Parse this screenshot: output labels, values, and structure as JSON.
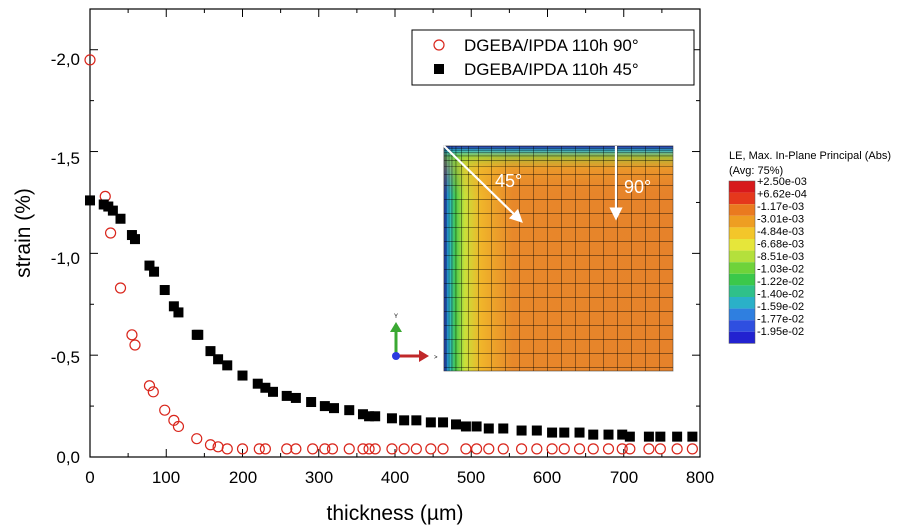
{
  "chart_data": {
    "type": "scatter",
    "xlabel": "thickness (µm)",
    "ylabel": "strain (%)",
    "xlim": [
      0,
      800
    ],
    "ylim": [
      0,
      -2.2
    ],
    "y_axis_inverted": true,
    "x_ticks": [
      "0",
      "100",
      "200",
      "300",
      "400",
      "500",
      "600",
      "700",
      "800"
    ],
    "y_ticks": [
      "0,0",
      "-0,5",
      "-1,0",
      "-1,5",
      "-2,0"
    ],
    "grid": false,
    "legend_position": "top-right",
    "series": [
      {
        "name": "DGEBA/IPDA 110h 90°",
        "marker": "open-circle",
        "color": "#d9261c",
        "points": [
          [
            0,
            -1.95
          ],
          [
            20,
            -1.28
          ],
          [
            27,
            -1.1
          ],
          [
            40,
            -0.83
          ],
          [
            55,
            -0.6
          ],
          [
            59,
            -0.55
          ],
          [
            78,
            -0.35
          ],
          [
            83,
            -0.32
          ],
          [
            98,
            -0.23
          ],
          [
            110,
            -0.18
          ],
          [
            116,
            -0.15
          ],
          [
            140,
            -0.09
          ],
          [
            158,
            -0.06
          ],
          [
            168,
            -0.05
          ],
          [
            180,
            -0.04
          ],
          [
            200,
            -0.04
          ],
          [
            222,
            -0.04
          ],
          [
            230,
            -0.04
          ],
          [
            258,
            -0.04
          ],
          [
            270,
            -0.04
          ],
          [
            292,
            -0.04
          ],
          [
            308,
            -0.04
          ],
          [
            318,
            -0.04
          ],
          [
            340,
            -0.04
          ],
          [
            358,
            -0.04
          ],
          [
            366,
            -0.04
          ],
          [
            374,
            -0.04
          ],
          [
            396,
            -0.04
          ],
          [
            412,
            -0.04
          ],
          [
            428,
            -0.04
          ],
          [
            447,
            -0.04
          ],
          [
            463,
            -0.04
          ],
          [
            493,
            -0.04
          ],
          [
            507,
            -0.04
          ],
          [
            523,
            -0.04
          ],
          [
            542,
            -0.04
          ],
          [
            566,
            -0.04
          ],
          [
            586,
            -0.04
          ],
          [
            606,
            -0.04
          ],
          [
            622,
            -0.04
          ],
          [
            642,
            -0.04
          ],
          [
            660,
            -0.04
          ],
          [
            680,
            -0.04
          ],
          [
            698,
            -0.04
          ],
          [
            708,
            -0.04
          ],
          [
            733,
            -0.04
          ],
          [
            748,
            -0.04
          ],
          [
            770,
            -0.04
          ],
          [
            790,
            -0.04
          ]
        ]
      },
      {
        "name": "DGEBA/IPDA 110h 45°",
        "marker": "filled-square",
        "color": "#000000",
        "points": [
          [
            0,
            -1.26
          ],
          [
            18,
            -1.24
          ],
          [
            24,
            -1.23
          ],
          [
            30,
            -1.21
          ],
          [
            40,
            -1.17
          ],
          [
            55,
            -1.09
          ],
          [
            59,
            -1.07
          ],
          [
            78,
            -0.94
          ],
          [
            84,
            -0.91
          ],
          [
            98,
            -0.82
          ],
          [
            110,
            -0.74
          ],
          [
            116,
            -0.71
          ],
          [
            140,
            -0.6
          ],
          [
            142,
            -0.6
          ],
          [
            158,
            -0.52
          ],
          [
            168,
            -0.48
          ],
          [
            180,
            -0.45
          ],
          [
            200,
            -0.4
          ],
          [
            220,
            -0.36
          ],
          [
            230,
            -0.34
          ],
          [
            240,
            -0.32
          ],
          [
            258,
            -0.3
          ],
          [
            270,
            -0.29
          ],
          [
            290,
            -0.27
          ],
          [
            308,
            -0.25
          ],
          [
            320,
            -0.24
          ],
          [
            340,
            -0.23
          ],
          [
            358,
            -0.21
          ],
          [
            366,
            -0.2
          ],
          [
            374,
            -0.2
          ],
          [
            396,
            -0.19
          ],
          [
            412,
            -0.18
          ],
          [
            428,
            -0.18
          ],
          [
            447,
            -0.17
          ],
          [
            463,
            -0.17
          ],
          [
            480,
            -0.16
          ],
          [
            493,
            -0.15
          ],
          [
            507,
            -0.15
          ],
          [
            523,
            -0.14
          ],
          [
            542,
            -0.14
          ],
          [
            566,
            -0.13
          ],
          [
            586,
            -0.13
          ],
          [
            606,
            -0.12
          ],
          [
            622,
            -0.12
          ],
          [
            642,
            -0.12
          ],
          [
            660,
            -0.11
          ],
          [
            680,
            -0.11
          ],
          [
            698,
            -0.11
          ],
          [
            708,
            -0.1
          ],
          [
            733,
            -0.1
          ],
          [
            748,
            -0.1
          ],
          [
            770,
            -0.1
          ],
          [
            790,
            -0.1
          ]
        ]
      }
    ]
  },
  "inset": {
    "angle_45_label": "45°",
    "angle_90_label": "90°",
    "triad_y_label": "Y",
    "colorbar_title_line1": "LE, Max. In-Plane Principal (Abs)",
    "colorbar_title_line2": "(Avg: 75%)",
    "colorbar_labels": [
      "+2.50e-03",
      "+6.62e-04",
      "-1.17e-03",
      "-3.01e-03",
      "-4.84e-03",
      "-6.68e-03",
      "-8.51e-03",
      "-1.03e-02",
      "-1.22e-02",
      "-1.40e-02",
      "-1.59e-02",
      "-1.77e-02",
      "-1.95e-02"
    ],
    "colorbar_colors": [
      "#d7191c",
      "#e5381c",
      "#ea7a1f",
      "#ee9e22",
      "#f3c62a",
      "#e6e63a",
      "#b4e03c",
      "#6fd33a",
      "#3bc84a",
      "#2fc08a",
      "#2ab0c8",
      "#2f7fe0",
      "#2f4fe0",
      "#2222d0"
    ],
    "mesh_gradient_colors": [
      "#2a3be0",
      "#29b6d8",
      "#45c94a",
      "#c8e03a",
      "#f0b52a",
      "#e8882a"
    ]
  }
}
